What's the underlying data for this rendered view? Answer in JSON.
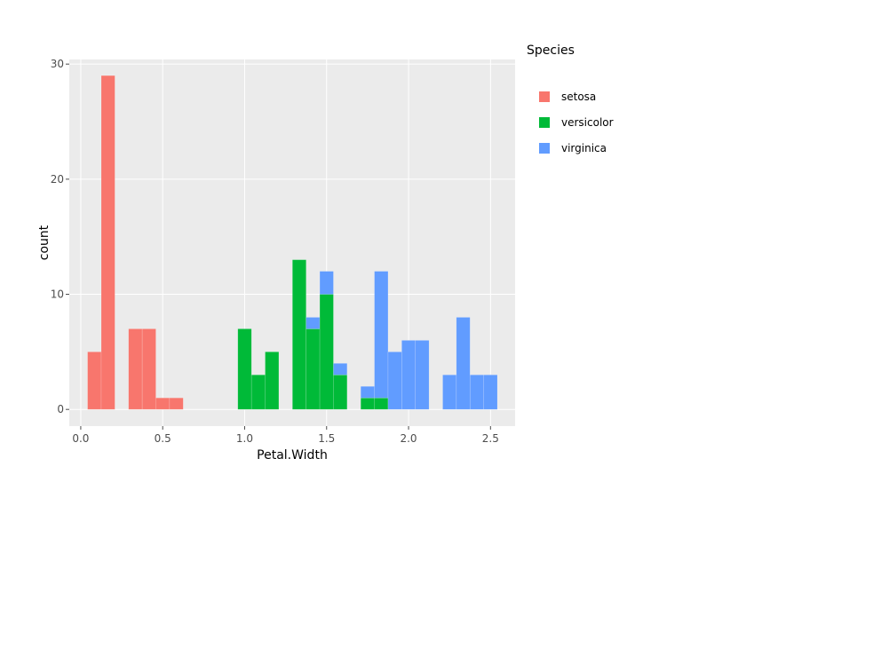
{
  "chart_data": {
    "type": "bar",
    "stacked": true,
    "xlabel": "Petal.Width",
    "ylabel": "count",
    "xlim": [
      -0.07,
      2.65
    ],
    "ylim": [
      -1.45,
      30.4
    ],
    "x_ticks": [
      0.0,
      0.5,
      1.0,
      1.5,
      2.0,
      2.5
    ],
    "x_tick_labels": [
      "0.0",
      "0.5",
      "1.0",
      "1.5",
      "2.0",
      "2.5"
    ],
    "y_ticks": [
      0,
      10,
      20,
      30
    ],
    "y_tick_labels": [
      "0",
      "10",
      "20",
      "30"
    ],
    "bin_width": 0.0833,
    "bin_centers": [
      0.0833,
      0.1667,
      0.25,
      0.3333,
      0.4167,
      0.5,
      0.5833,
      0.6667,
      0.75,
      0.8333,
      0.9167,
      1.0,
      1.0833,
      1.1667,
      1.25,
      1.3333,
      1.4167,
      1.5,
      1.5833,
      1.6667,
      1.75,
      1.8333,
      1.9167,
      2.0,
      2.0833,
      2.1667,
      2.25,
      2.3333,
      2.4167,
      2.5
    ],
    "series": [
      {
        "name": "setosa",
        "color": "#F8766D",
        "values": [
          5,
          29,
          0,
          7,
          7,
          1,
          1,
          0,
          0,
          0,
          0,
          0,
          0,
          0,
          0,
          0,
          0,
          0,
          0,
          0,
          0,
          0,
          0,
          0,
          0,
          0,
          0,
          0,
          0,
          0
        ]
      },
      {
        "name": "versicolor",
        "color": "#00BA38",
        "values": [
          0,
          0,
          0,
          0,
          0,
          0,
          0,
          0,
          0,
          0,
          0,
          7,
          3,
          5,
          0,
          13,
          7,
          10,
          3,
          0,
          1,
          1,
          0,
          0,
          0,
          0,
          0,
          0,
          0,
          0
        ]
      },
      {
        "name": "virginica",
        "color": "#619CFF",
        "values": [
          0,
          0,
          0,
          0,
          0,
          0,
          0,
          0,
          0,
          0,
          0,
          0,
          0,
          0,
          0,
          0,
          1,
          2,
          1,
          0,
          1,
          11,
          5,
          6,
          6,
          0,
          3,
          8,
          3,
          3
        ]
      }
    ],
    "grid": true,
    "panel_background": "#EBEBEB",
    "grid_color": "#FFFFFF",
    "legend": {
      "title": "Species",
      "position": "right",
      "entries": [
        "setosa",
        "versicolor",
        "virginica"
      ]
    }
  }
}
